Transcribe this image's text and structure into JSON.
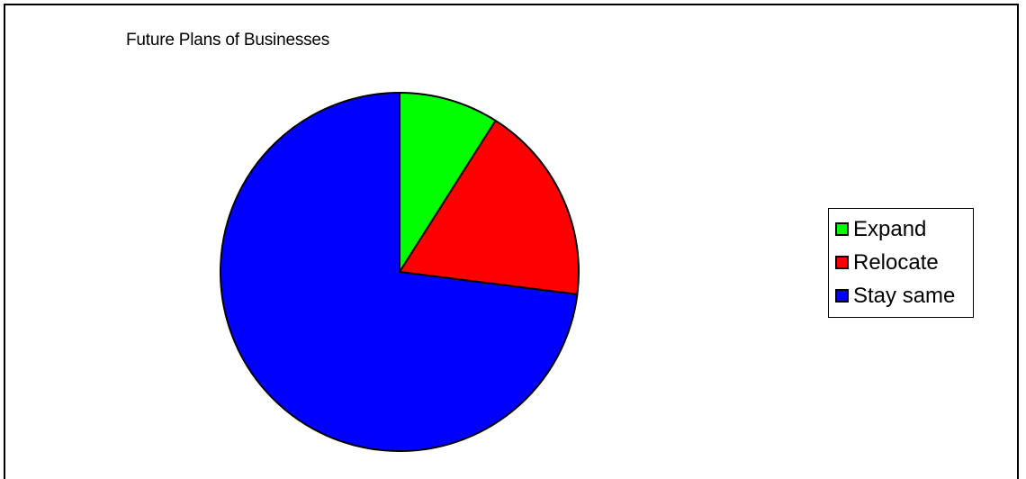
{
  "chart_data": {
    "type": "pie",
    "title": "Future Plans of Businesses",
    "categories": [
      "Expand",
      "Relocate",
      "Stay same"
    ],
    "values": [
      9,
      18,
      73
    ],
    "colors": [
      "#00ff00",
      "#ff0000",
      "#0000ff"
    ],
    "start_angle": "12 o'clock",
    "direction": "clockwise",
    "legend_position": "right"
  }
}
